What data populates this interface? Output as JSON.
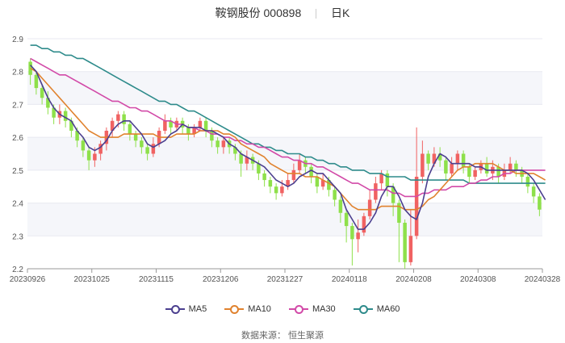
{
  "header": {
    "title": "鞍钢股份 000898",
    "period": "日K"
  },
  "source": "数据来源： 恒生聚源",
  "colors": {
    "up": "#f06262",
    "down": "#8ee04a",
    "ma5": "#4b3f8f",
    "ma10": "#e0822e",
    "ma30": "#d24aa8",
    "ma60": "#2e8b8b",
    "grid": "#e8eaf0",
    "band": "#f5f6fa"
  },
  "chart_data": {
    "type": "candlestick",
    "x_tick_labels": [
      "20230926",
      "20231025",
      "20231115",
      "20231206",
      "20231227",
      "20240118",
      "20240208",
      "20240308",
      "20240328"
    ],
    "y_tick_labels": [
      "2.2",
      "2.3",
      "2.4",
      "2.5",
      "2.6",
      "2.7",
      "2.8",
      "2.9"
    ],
    "ylim": [
      2.2,
      2.9
    ],
    "legend": [
      "MA5",
      "MA10",
      "MA30",
      "MA60"
    ],
    "candles": [
      [
        2.83,
        2.79,
        2.84,
        2.76
      ],
      [
        2.79,
        2.75,
        2.8,
        2.73
      ],
      [
        2.75,
        2.72,
        2.76,
        2.7
      ],
      [
        2.72,
        2.69,
        2.74,
        2.67
      ],
      [
        2.69,
        2.66,
        2.7,
        2.64
      ],
      [
        2.66,
        2.68,
        2.7,
        2.64
      ],
      [
        2.68,
        2.65,
        2.69,
        2.63
      ],
      [
        2.65,
        2.62,
        2.66,
        2.6
      ],
      [
        2.62,
        2.59,
        2.63,
        2.57
      ],
      [
        2.59,
        2.56,
        2.6,
        2.54
      ],
      [
        2.56,
        2.53,
        2.57,
        2.5
      ],
      [
        2.53,
        2.55,
        2.57,
        2.51
      ],
      [
        2.55,
        2.58,
        2.59,
        2.53
      ],
      [
        2.58,
        2.62,
        2.63,
        2.56
      ],
      [
        2.62,
        2.65,
        2.66,
        2.6
      ],
      [
        2.65,
        2.67,
        2.68,
        2.63
      ],
      [
        2.67,
        2.64,
        2.68,
        2.62
      ],
      [
        2.64,
        2.61,
        2.65,
        2.59
      ],
      [
        2.61,
        2.59,
        2.62,
        2.57
      ],
      [
        2.59,
        2.57,
        2.6,
        2.55
      ],
      [
        2.57,
        2.55,
        2.58,
        2.53
      ],
      [
        2.55,
        2.58,
        2.6,
        2.54
      ],
      [
        2.58,
        2.62,
        2.63,
        2.57
      ],
      [
        2.62,
        2.65,
        2.67,
        2.61
      ],
      [
        2.65,
        2.63,
        2.66,
        2.61
      ],
      [
        2.63,
        2.65,
        2.66,
        2.62
      ],
      [
        2.65,
        2.63,
        2.66,
        2.61
      ],
      [
        2.63,
        2.61,
        2.64,
        2.59
      ],
      [
        2.61,
        2.63,
        2.64,
        2.6
      ],
      [
        2.63,
        2.65,
        2.66,
        2.62
      ],
      [
        2.65,
        2.62,
        2.66,
        2.6
      ],
      [
        2.62,
        2.59,
        2.63,
        2.57
      ],
      [
        2.59,
        2.57,
        2.6,
        2.55
      ],
      [
        2.57,
        2.59,
        2.6,
        2.55
      ],
      [
        2.59,
        2.57,
        2.6,
        2.55
      ],
      [
        2.57,
        2.55,
        2.58,
        2.53
      ],
      [
        2.55,
        2.52,
        2.56,
        2.48
      ],
      [
        2.52,
        2.54,
        2.56,
        2.5
      ],
      [
        2.54,
        2.52,
        2.55,
        2.5
      ],
      [
        2.52,
        2.49,
        2.53,
        2.47
      ],
      [
        2.49,
        2.47,
        2.5,
        2.45
      ],
      [
        2.47,
        2.45,
        2.48,
        2.43
      ],
      [
        2.45,
        2.43,
        2.46,
        2.41
      ],
      [
        2.43,
        2.45,
        2.47,
        2.42
      ],
      [
        2.45,
        2.47,
        2.49,
        2.44
      ],
      [
        2.47,
        2.5,
        2.52,
        2.46
      ],
      [
        2.5,
        2.53,
        2.55,
        2.49
      ],
      [
        2.53,
        2.51,
        2.54,
        2.49
      ],
      [
        2.51,
        2.48,
        2.52,
        2.46
      ],
      [
        2.48,
        2.45,
        2.49,
        2.43
      ],
      [
        2.45,
        2.47,
        2.49,
        2.44
      ],
      [
        2.47,
        2.44,
        2.48,
        2.42
      ],
      [
        2.44,
        2.41,
        2.45,
        2.39
      ],
      [
        2.41,
        2.37,
        2.42,
        2.34
      ],
      [
        2.37,
        2.33,
        2.38,
        2.28
      ],
      [
        2.33,
        2.29,
        2.34,
        2.21
      ],
      [
        2.29,
        2.31,
        2.35,
        2.25
      ],
      [
        2.31,
        2.36,
        2.37,
        2.3
      ],
      [
        2.36,
        2.41,
        2.44,
        2.35
      ],
      [
        2.41,
        2.46,
        2.48,
        2.4
      ],
      [
        2.46,
        2.49,
        2.5,
        2.44
      ],
      [
        2.49,
        2.45,
        2.5,
        2.42
      ],
      [
        2.45,
        2.4,
        2.46,
        2.36
      ],
      [
        2.4,
        2.34,
        2.41,
        2.22
      ],
      [
        2.34,
        2.22,
        2.35,
        2.2
      ],
      [
        2.22,
        2.3,
        2.38,
        2.21
      ],
      [
        2.3,
        2.48,
        2.63,
        2.29
      ],
      [
        2.48,
        2.55,
        2.59,
        2.46
      ],
      [
        2.55,
        2.52,
        2.56,
        2.5
      ],
      [
        2.52,
        2.55,
        2.57,
        2.51
      ],
      [
        2.55,
        2.53,
        2.57,
        2.51
      ],
      [
        2.53,
        2.49,
        2.54,
        2.47
      ],
      [
        2.49,
        2.52,
        2.54,
        2.48
      ],
      [
        2.52,
        2.55,
        2.56,
        2.5
      ],
      [
        2.55,
        2.51,
        2.56,
        2.49
      ],
      [
        2.51,
        2.48,
        2.52,
        2.46
      ],
      [
        2.48,
        2.5,
        2.51,
        2.47
      ],
      [
        2.5,
        2.52,
        2.53,
        2.49
      ],
      [
        2.52,
        2.49,
        2.54,
        2.48
      ],
      [
        2.49,
        2.51,
        2.53,
        2.47
      ],
      [
        2.51,
        2.48,
        2.52,
        2.46
      ],
      [
        2.48,
        2.5,
        2.52,
        2.47
      ],
      [
        2.5,
        2.52,
        2.54,
        2.49
      ],
      [
        2.52,
        2.5,
        2.53,
        2.48
      ],
      [
        2.5,
        2.48,
        2.51,
        2.46
      ],
      [
        2.48,
        2.45,
        2.49,
        2.43
      ],
      [
        2.45,
        2.42,
        2.46,
        2.4
      ],
      [
        2.42,
        2.38,
        2.43,
        2.36
      ]
    ],
    "ma5": [
      2.82,
      2.8,
      2.76,
      2.72,
      2.69,
      2.67,
      2.66,
      2.65,
      2.62,
      2.6,
      2.57,
      2.56,
      2.57,
      2.59,
      2.62,
      2.64,
      2.65,
      2.65,
      2.63,
      2.61,
      2.58,
      2.57,
      2.58,
      2.59,
      2.61,
      2.62,
      2.64,
      2.63,
      2.63,
      2.63,
      2.62,
      2.62,
      2.61,
      2.6,
      2.58,
      2.57,
      2.55,
      2.54,
      2.53,
      2.52,
      2.51,
      2.49,
      2.47,
      2.46,
      2.45,
      2.46,
      2.48,
      2.49,
      2.5,
      2.49,
      2.49,
      2.47,
      2.45,
      2.43,
      2.38,
      2.35,
      2.32,
      2.32,
      2.34,
      2.37,
      2.42,
      2.45,
      2.45,
      2.42,
      2.38,
      2.36,
      2.35,
      2.4,
      2.48,
      2.52,
      2.55,
      2.54,
      2.52,
      2.52,
      2.52,
      2.52,
      2.51,
      2.51,
      2.5,
      2.5,
      2.5,
      2.5,
      2.5,
      2.5,
      2.5,
      2.49,
      2.47,
      2.44,
      2.41
    ],
    "ma10": [
      2.81,
      2.8,
      2.78,
      2.76,
      2.74,
      2.72,
      2.7,
      2.68,
      2.66,
      2.64,
      2.62,
      2.61,
      2.6,
      2.6,
      2.6,
      2.6,
      2.61,
      2.61,
      2.61,
      2.61,
      2.61,
      2.61,
      2.6,
      2.6,
      2.6,
      2.61,
      2.61,
      2.61,
      2.61,
      2.62,
      2.62,
      2.62,
      2.62,
      2.61,
      2.61,
      2.6,
      2.58,
      2.57,
      2.56,
      2.55,
      2.54,
      2.52,
      2.51,
      2.5,
      2.49,
      2.49,
      2.49,
      2.48,
      2.48,
      2.48,
      2.47,
      2.46,
      2.45,
      2.43,
      2.41,
      2.39,
      2.38,
      2.38,
      2.38,
      2.38,
      2.39,
      2.39,
      2.39,
      2.39,
      2.38,
      2.38,
      2.38,
      2.39,
      2.41,
      2.42,
      2.44,
      2.46,
      2.48,
      2.5,
      2.51,
      2.51,
      2.52,
      2.52,
      2.52,
      2.52,
      2.51,
      2.5,
      2.5,
      2.49,
      2.49,
      2.49,
      2.49,
      2.48,
      2.47
    ],
    "ma30": [
      2.84,
      2.83,
      2.82,
      2.81,
      2.8,
      2.79,
      2.79,
      2.78,
      2.77,
      2.76,
      2.75,
      2.74,
      2.73,
      2.72,
      2.71,
      2.71,
      2.7,
      2.69,
      2.69,
      2.68,
      2.68,
      2.67,
      2.66,
      2.65,
      2.65,
      2.64,
      2.64,
      2.63,
      2.63,
      2.62,
      2.62,
      2.61,
      2.61,
      2.6,
      2.6,
      2.59,
      2.59,
      2.58,
      2.58,
      2.57,
      2.57,
      2.56,
      2.55,
      2.54,
      2.54,
      2.53,
      2.53,
      2.52,
      2.52,
      2.51,
      2.51,
      2.5,
      2.49,
      2.48,
      2.47,
      2.46,
      2.46,
      2.45,
      2.44,
      2.44,
      2.44,
      2.44,
      2.43,
      2.43,
      2.42,
      2.42,
      2.42,
      2.43,
      2.43,
      2.44,
      2.44,
      2.44,
      2.45,
      2.45,
      2.45,
      2.46,
      2.46,
      2.47,
      2.47,
      2.48,
      2.48,
      2.49,
      2.49,
      2.5,
      2.5,
      2.5,
      2.5,
      2.5,
      2.5
    ],
    "ma60": [
      2.88,
      2.88,
      2.87,
      2.87,
      2.86,
      2.86,
      2.85,
      2.85,
      2.84,
      2.84,
      2.83,
      2.82,
      2.81,
      2.8,
      2.79,
      2.78,
      2.77,
      2.76,
      2.75,
      2.74,
      2.73,
      2.72,
      2.71,
      2.71,
      2.7,
      2.7,
      2.69,
      2.68,
      2.68,
      2.67,
      2.66,
      2.65,
      2.64,
      2.63,
      2.62,
      2.61,
      2.6,
      2.59,
      2.58,
      2.58,
      2.57,
      2.57,
      2.56,
      2.56,
      2.55,
      2.55,
      2.55,
      2.54,
      2.54,
      2.53,
      2.53,
      2.52,
      2.52,
      2.51,
      2.51,
      2.5,
      2.5,
      2.5,
      2.49,
      2.49,
      2.49,
      2.48,
      2.48,
      2.48,
      2.48,
      2.47,
      2.47,
      2.47,
      2.47,
      2.47,
      2.47,
      2.47,
      2.47,
      2.47,
      2.47,
      2.46,
      2.46,
      2.46,
      2.46,
      2.46,
      2.46,
      2.46,
      2.46,
      2.46,
      2.46,
      2.46,
      2.46,
      2.46,
      2.46
    ]
  }
}
